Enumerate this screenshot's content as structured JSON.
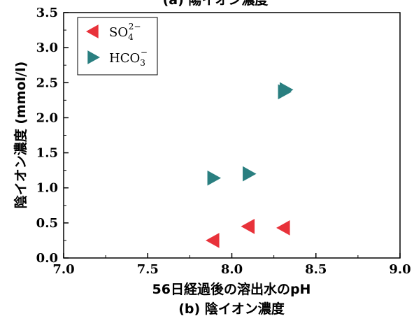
{
  "top_caption": "(a) 陽イオン濃度",
  "bottom_caption": "(b) 陰イオン濃度",
  "chart_data": {
    "type": "scatter",
    "title": "",
    "xlabel": "56日経過後の溶出水のpH",
    "ylabel": "陰イオン濃度 (mmol/l)",
    "xlim": [
      7.0,
      9.0
    ],
    "ylim": [
      0.0,
      3.5
    ],
    "x_ticks": [
      "7.0",
      "7.5",
      "8.0",
      "8.5",
      "9.0"
    ],
    "y_ticks": [
      "0.0",
      "0.5",
      "1.0",
      "1.5",
      "2.0",
      "2.5",
      "3.0",
      "3.5"
    ],
    "grid": false,
    "legend_position": "top-left",
    "series": [
      {
        "name": "SO4^2-",
        "label_main": "SO",
        "label_sub": "4",
        "label_sup": "2−",
        "color": "#e8323a",
        "marker": "left-triangle",
        "points": [
          {
            "x": 7.89,
            "y": 0.25
          },
          {
            "x": 8.1,
            "y": 0.45
          },
          {
            "x": 8.31,
            "y": 0.43
          }
        ]
      },
      {
        "name": "HCO3^-",
        "label_main": "HCO",
        "label_sub": "3",
        "label_sup": "−",
        "color": "#2a7f80",
        "marker": "right-triangle",
        "points": [
          {
            "x": 7.89,
            "y": 1.14
          },
          {
            "x": 8.1,
            "y": 1.2
          },
          {
            "x": 8.31,
            "y": 2.37
          },
          {
            "x": 8.32,
            "y": 2.4
          }
        ]
      }
    ]
  }
}
